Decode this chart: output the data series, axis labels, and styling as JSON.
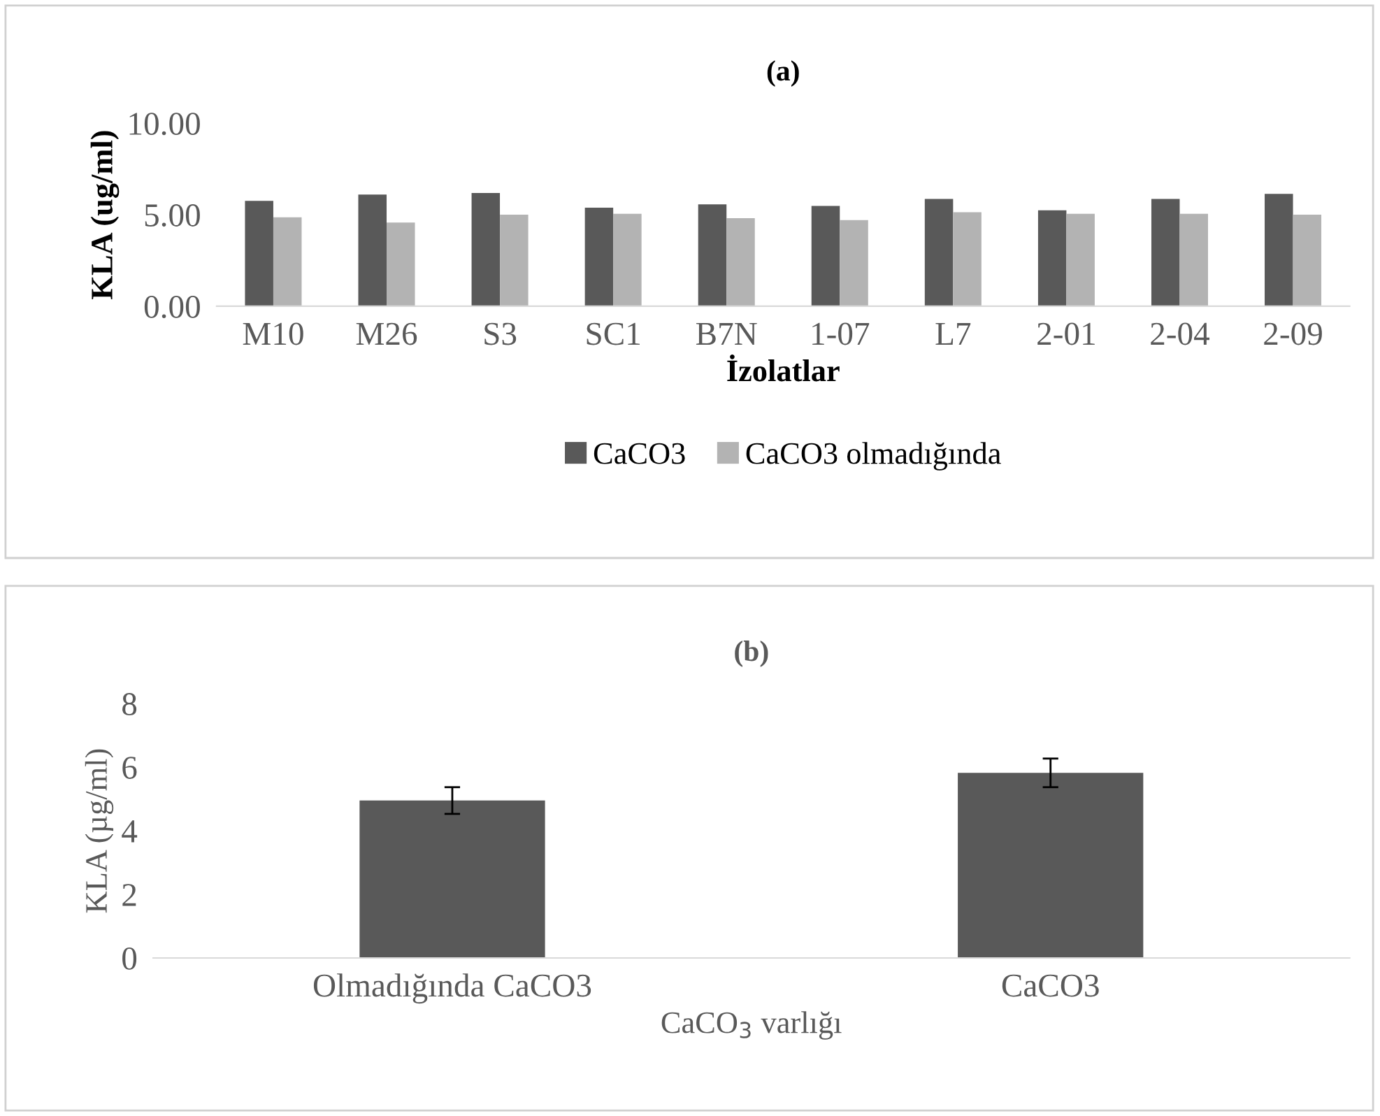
{
  "chart_data": [
    {
      "type": "bar",
      "title": "(a)",
      "xlabel": "İzolatlar",
      "ylabel": "KLA (ug/ml)",
      "categories": [
        "M10",
        "M26",
        "S3",
        "SC1",
        "B7N",
        "1-07",
        "L7",
        "2-01",
        "2-04",
        "2-09"
      ],
      "series": [
        {
          "name": "CaCO3",
          "color": "#595959",
          "values": [
            5.76,
            6.1,
            6.19,
            5.38,
            5.57,
            5.48,
            5.86,
            5.24,
            5.86,
            6.14
          ]
        },
        {
          "name": "CaCO3 olmadığında",
          "color": "#b3b3b3",
          "values": [
            4.86,
            4.57,
            5.0,
            5.05,
            4.81,
            4.71,
            5.14,
            5.05,
            5.05,
            5.0
          ]
        }
      ],
      "ylim": [
        0,
        10
      ],
      "yticks": [
        {
          "value": 0,
          "label": "0.00"
        },
        {
          "value": 5,
          "label": "5.00"
        },
        {
          "value": 10,
          "label": "10.00"
        }
      ],
      "grid": false,
      "legend": "bottom"
    },
    {
      "type": "bar",
      "title": "(b)",
      "xlabel": "CaCO$_{3}$ varlığı",
      "ylabel": "KLA (µg/ml)",
      "categories": [
        "Olmadığında CaCO3",
        "CaCO3"
      ],
      "series": [
        {
          "color": "#595959",
          "values": [
            4.95,
            5.82
          ],
          "errors": [
            0.42,
            0.45
          ]
        }
      ],
      "ylim": [
        0,
        8
      ],
      "yticks": [
        0,
        2,
        4,
        6,
        8
      ],
      "grid": false,
      "legend": false
    }
  ]
}
